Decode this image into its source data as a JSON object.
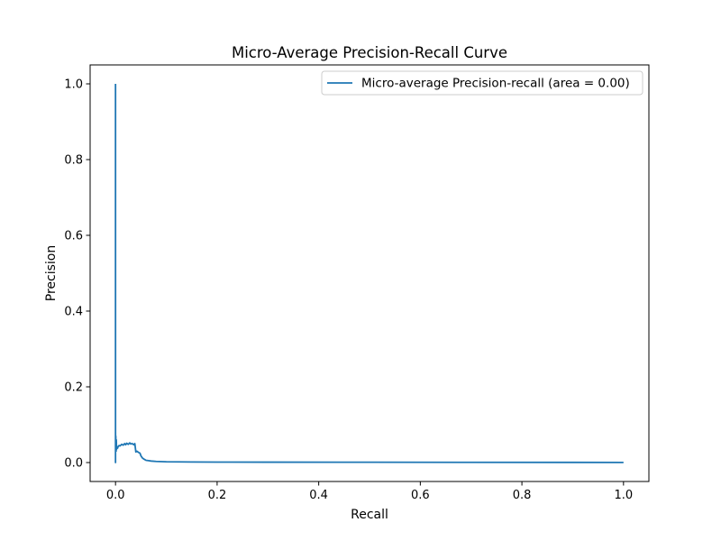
{
  "chart_data": {
    "type": "line",
    "title": "Micro-Average Precision-Recall Curve",
    "xlabel": "Recall",
    "ylabel": "Precision",
    "xlim": [
      -0.05,
      1.05
    ],
    "ylim": [
      -0.05,
      1.05
    ],
    "xticks": [
      0.0,
      0.2,
      0.4,
      0.6,
      0.8,
      1.0
    ],
    "xtick_labels": [
      "0.0",
      "0.2",
      "0.4",
      "0.6",
      "0.8",
      "1.0"
    ],
    "yticks": [
      0.0,
      0.2,
      0.4,
      0.6,
      0.8,
      1.0
    ],
    "ytick_labels": [
      "0.0",
      "0.2",
      "0.4",
      "0.6",
      "0.8",
      "1.0"
    ],
    "grid": false,
    "legend_position": "top-right",
    "series": [
      {
        "name": "Micro-average Precision-recall (area = 0.00)",
        "color": "#1f77b4",
        "x": [
          0.0,
          0.0,
          0.0,
          0.0003,
          0.0005,
          0.0008,
          0.001,
          0.0012,
          0.0015,
          0.002,
          0.003,
          0.004,
          0.005,
          0.007,
          0.009,
          0.012,
          0.015,
          0.018,
          0.02,
          0.022,
          0.025,
          0.028,
          0.03,
          0.033,
          0.036,
          0.038,
          0.04,
          0.042,
          0.045,
          0.048,
          0.05,
          0.053,
          0.056,
          0.06,
          0.065,
          0.07,
          0.08,
          0.1,
          0.15,
          0.2,
          0.3,
          0.5,
          0.7,
          0.9,
          1.0
        ],
        "y": [
          1.0,
          0.0,
          0.082,
          0.035,
          0.07,
          0.04,
          0.05,
          0.03,
          0.06,
          0.035,
          0.04,
          0.038,
          0.042,
          0.045,
          0.044,
          0.048,
          0.046,
          0.05,
          0.047,
          0.051,
          0.048,
          0.052,
          0.049,
          0.05,
          0.047,
          0.05,
          0.028,
          0.03,
          0.027,
          0.025,
          0.018,
          0.012,
          0.009,
          0.006,
          0.005,
          0.004,
          0.003,
          0.002,
          0.0015,
          0.0012,
          0.001,
          0.0008,
          0.0006,
          0.0004,
          0.0003
        ]
      }
    ]
  }
}
